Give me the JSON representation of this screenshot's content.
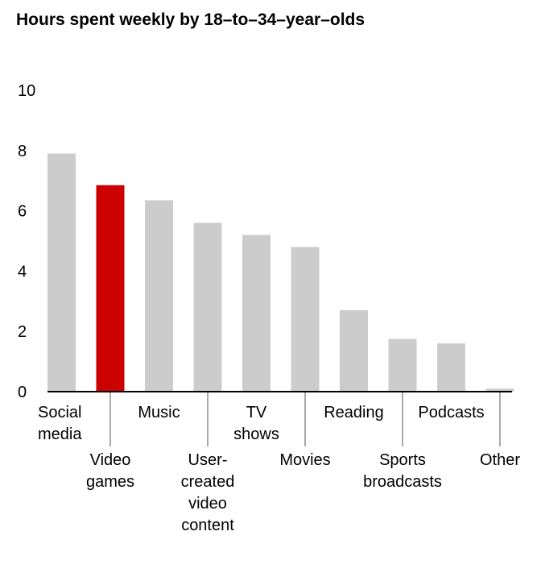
{
  "chart_data": {
    "type": "bar",
    "title": "Hours spent weekly by 18–to–34–year–olds",
    "xlabel": "",
    "ylabel": "",
    "ylim": [
      0,
      10
    ],
    "yticks": [
      "0",
      "2",
      "4",
      "6",
      "8",
      "10"
    ],
    "grid": false,
    "categories": [
      "Social media",
      "Video games",
      "Music",
      "User-created video content",
      "TV shows",
      "Movies",
      "Reading",
      "Sports broadcasts",
      "Podcasts",
      "Other"
    ],
    "category_label_lines": [
      [
        "Social",
        "media"
      ],
      [
        "Video",
        "games"
      ],
      [
        "Music"
      ],
      [
        "User-",
        "created",
        "video",
        "content"
      ],
      [
        "TV",
        "shows"
      ],
      [
        "Movies"
      ],
      [
        "Reading"
      ],
      [
        "Sports",
        "broadcasts"
      ],
      [
        "Podcasts"
      ],
      [
        "Other"
      ]
    ],
    "values": [
      7.9,
      6.85,
      6.35,
      5.6,
      5.2,
      4.8,
      2.7,
      1.75,
      1.6,
      0.1
    ],
    "highlight_index": 1,
    "colors": {
      "bar": "#cccccc",
      "highlight": "#cc0000",
      "axis": "#000000",
      "leader": "#555555"
    }
  }
}
